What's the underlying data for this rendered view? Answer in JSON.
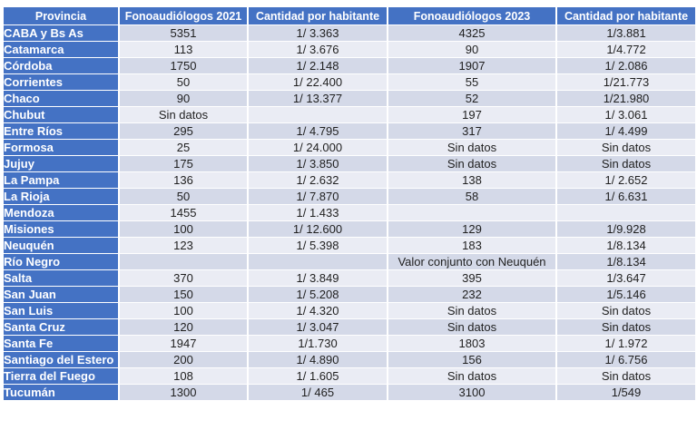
{
  "colors": {
    "header_blue": "#4472c4",
    "band_dark": "#d4d9e8",
    "band_light": "#eaecf4",
    "header_text": "#ffffff",
    "cell_text": "#1f1f1f"
  },
  "table": {
    "columns": [
      "Provincia",
      "Fonoaudiólogos  2021",
      "Cantidad por habitante",
      "Fonoaudiólogos  2023",
      "Cantidad por habitante"
    ],
    "rows": [
      {
        "cells": [
          "CABA y Bs As",
          "5351",
          "1/ 3.363",
          "4325",
          "1/3.881"
        ]
      },
      {
        "cells": [
          "Catamarca",
          "113",
          "1/ 3.676",
          "90",
          "1/4.772"
        ]
      },
      {
        "cells": [
          "Córdoba",
          "1750",
          "1/ 2.148",
          "1907",
          "1/ 2.086"
        ]
      },
      {
        "cells": [
          "Corrientes",
          "50",
          "1/ 22.400",
          "55",
          "1/21.773"
        ]
      },
      {
        "cells": [
          "Chaco",
          "90",
          "1/ 13.377",
          "52",
          "1/21.980"
        ]
      },
      {
        "cells": [
          "Chubut",
          "Sin datos",
          "",
          "197",
          "1/ 3.061"
        ]
      },
      {
        "cells": [
          "Entre Ríos",
          "295",
          "1/ 4.795",
          "317",
          "1/ 4.499"
        ]
      },
      {
        "cells": [
          "Formosa",
          "25",
          "1/ 24.000",
          "Sin datos",
          "Sin datos"
        ]
      },
      {
        "cells": [
          "Jujuy",
          "175",
          "1/ 3.850",
          "Sin datos",
          "Sin datos"
        ]
      },
      {
        "cells": [
          "La Pampa",
          "136",
          "1/ 2.632",
          "138",
          "1/ 2.652"
        ]
      },
      {
        "cells": [
          "La Rioja",
          "50",
          "1/ 7.870",
          "58",
          "1/ 6.631"
        ]
      },
      {
        "cells": [
          "Mendoza",
          "1455",
          "1/ 1.433",
          "",
          ""
        ]
      },
      {
        "cells": [
          "Misiones",
          "100",
          "1/ 12.600",
          "129",
          "1/9.928"
        ]
      },
      {
        "cells": [
          "Neuquén",
          "123",
          "1/ 5.398",
          "183",
          "1/8.134"
        ]
      },
      {
        "cells": [
          "Río Negro",
          "",
          "",
          "Valor conjunto con Neuquén",
          "1/8.134"
        ]
      },
      {
        "cells": [
          "Salta",
          "370",
          "1/ 3.849",
          "395",
          "1/3.647"
        ]
      },
      {
        "cells": [
          "San Juan",
          "150",
          "1/ 5.208",
          "232",
          "1/5.146"
        ]
      },
      {
        "cells": [
          "San Luis",
          "100",
          "1/ 4.320",
          "Sin datos",
          "Sin datos"
        ]
      },
      {
        "cells": [
          "Santa Cruz",
          "120",
          "1/ 3.047",
          "Sin datos",
          "Sin datos"
        ]
      },
      {
        "cells": [
          "Santa Fe",
          "1947",
          "1/1.730",
          "1803",
          "1/ 1.972"
        ]
      },
      {
        "cells": [
          "Santiago del Estero",
          "200",
          "1/ 4.890",
          "156",
          "1/ 6.756"
        ]
      },
      {
        "cells": [
          "Tierra del Fuego",
          "108",
          "1/ 1.605",
          "Sin datos",
          "Sin datos"
        ]
      },
      {
        "cells": [
          "Tucumán",
          "1300",
          "1/ 465",
          "3100",
          "1/549"
        ]
      }
    ]
  }
}
